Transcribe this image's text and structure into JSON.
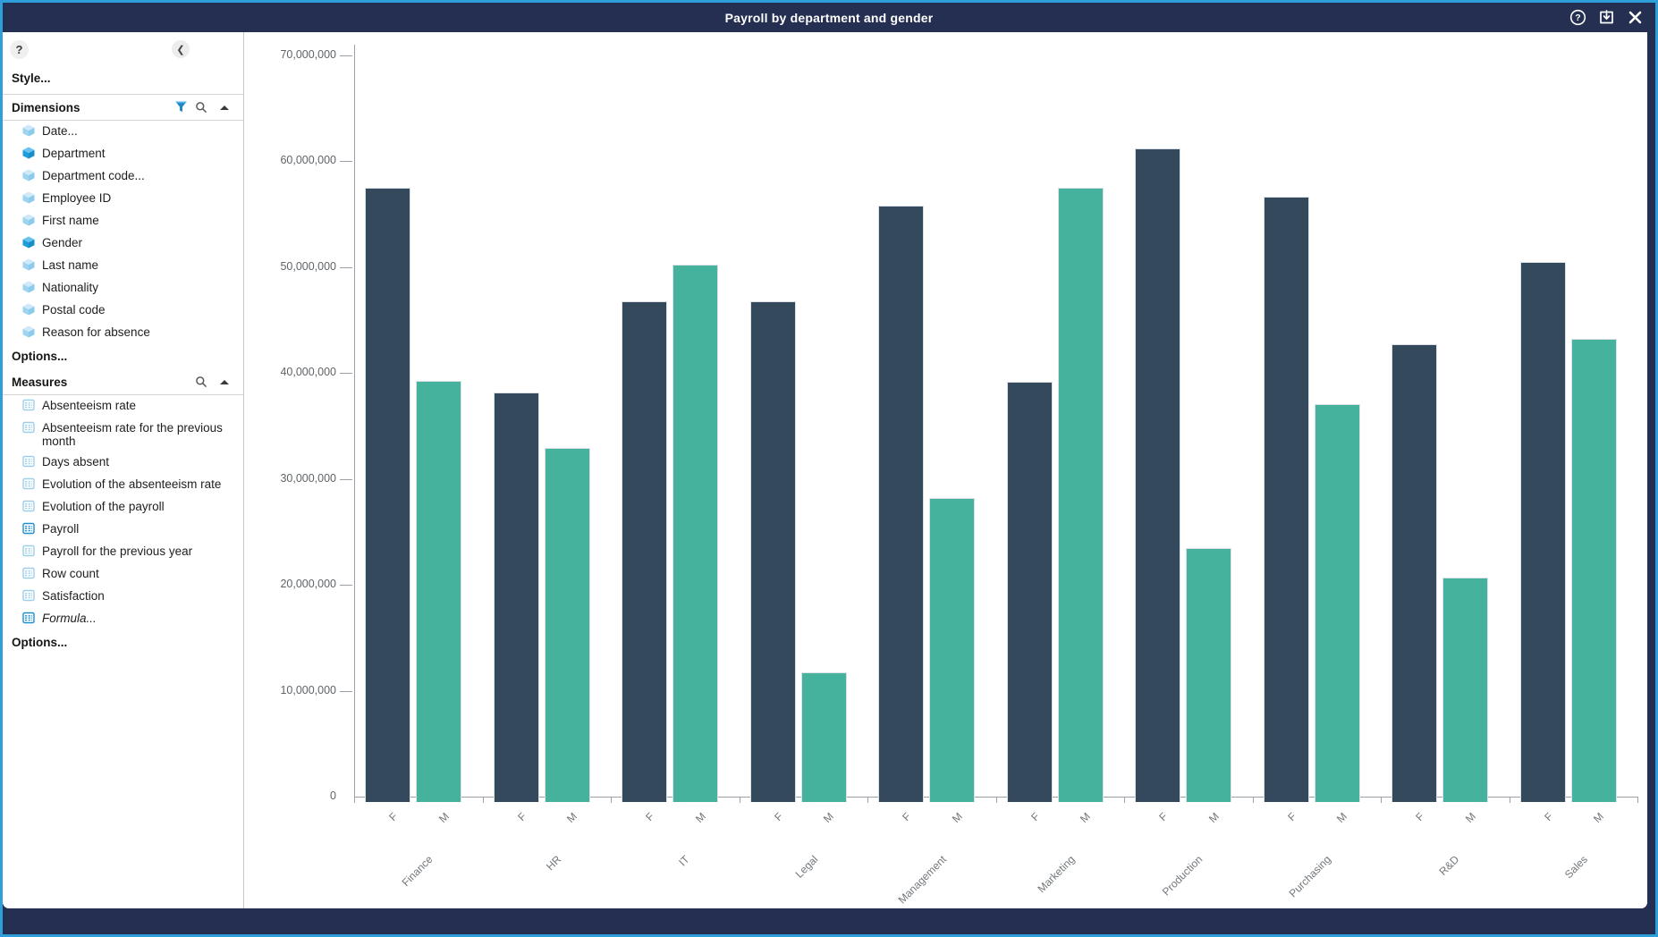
{
  "window": {
    "title": "Payroll by department and gender",
    "help_glyph": "?",
    "collapse_glyph": "❮"
  },
  "sidebar": {
    "style_label": "Style...",
    "dimensions": {
      "title": "Dimensions",
      "items": [
        {
          "label": "Date...",
          "used": false
        },
        {
          "label": "Department",
          "used": true
        },
        {
          "label": "Department code...",
          "used": false
        },
        {
          "label": "Employee ID",
          "used": false
        },
        {
          "label": "First name",
          "used": false
        },
        {
          "label": "Gender",
          "used": true
        },
        {
          "label": "Last name",
          "used": false
        },
        {
          "label": "Nationality",
          "used": false
        },
        {
          "label": "Postal code",
          "used": false
        },
        {
          "label": "Reason for absence",
          "used": false
        }
      ],
      "options_label": "Options..."
    },
    "measures": {
      "title": "Measures",
      "items": [
        {
          "label": "Absenteeism rate",
          "used": false,
          "italic": false
        },
        {
          "label": "Absenteeism rate for the previous month",
          "used": false,
          "italic": false
        },
        {
          "label": "Days absent",
          "used": false,
          "italic": false
        },
        {
          "label": "Evolution of the absenteeism rate",
          "used": false,
          "italic": false
        },
        {
          "label": "Evolution of the payroll",
          "used": false,
          "italic": false
        },
        {
          "label": "Payroll",
          "used": true,
          "italic": false
        },
        {
          "label": "Payroll for the previous year",
          "used": false,
          "italic": false
        },
        {
          "label": "Row count",
          "used": false,
          "italic": false
        },
        {
          "label": "Satisfaction",
          "used": false,
          "italic": false
        },
        {
          "label": "Formula...",
          "used": true,
          "italic": true
        }
      ],
      "options_label": "Options..."
    }
  },
  "chart_data": {
    "type": "bar",
    "title": "Payroll by department and gender",
    "categories": [
      "Finance",
      "HR",
      "IT",
      "Legal",
      "Management",
      "Marketing",
      "Production",
      "Purchasing",
      "R&D",
      "Sales"
    ],
    "series": [
      {
        "name": "F",
        "color": "#34495c",
        "values": [
          57500000,
          38200000,
          46800000,
          46800000,
          55800000,
          39200000,
          61200000,
          56700000,
          42700000,
          50500000
        ]
      },
      {
        "name": "M",
        "color": "#45b29e",
        "values": [
          39300000,
          32900000,
          50200000,
          11700000,
          28200000,
          57500000,
          23500000,
          37100000,
          20700000,
          43200000
        ]
      }
    ],
    "xlabel": "",
    "ylabel": "",
    "ylim": [
      0,
      70000000
    ],
    "ytick_interval": 10000000,
    "ytick_labels": [
      "0",
      "10,000,000",
      "20,000,000",
      "30,000,000",
      "40,000,000",
      "50,000,000",
      "60,000,000",
      "70,000,000"
    ],
    "grid": false,
    "legend_position": "none",
    "bar_label_rotation_deg": -45
  },
  "colors": {
    "chrome": "#242f51",
    "frame": "#2f9fda",
    "bar_f": "#34495c",
    "bar_m": "#45b29e",
    "used_icon": "#1d9dda",
    "unused_icon": "#9ed4ef",
    "funnel": "#1e88c7"
  }
}
